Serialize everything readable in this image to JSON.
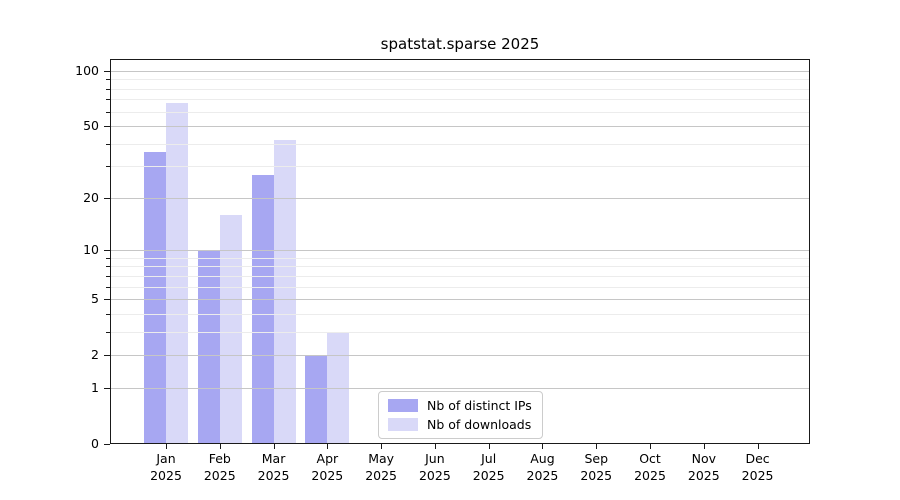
{
  "chart_data": {
    "type": "bar",
    "title": "spatstat.sparse 2025",
    "year": "2025",
    "months": [
      "Jan",
      "Feb",
      "Mar",
      "Apr",
      "May",
      "Jun",
      "Jul",
      "Aug",
      "Sep",
      "Oct",
      "Nov",
      "Dec"
    ],
    "categories": [
      "Jan 2025",
      "Feb 2025",
      "Mar 2025",
      "Apr 2025",
      "May 2025",
      "Jun 2025",
      "Jul 2025",
      "Aug 2025",
      "Sep 2025",
      "Oct 2025",
      "Nov 2025",
      "Dec 2025"
    ],
    "series": [
      {
        "name": "Nb of distinct IPs",
        "color": "#a7a7f2",
        "values": [
          36,
          10,
          27,
          2,
          0,
          0,
          0,
          0,
          0,
          0,
          0,
          0
        ]
      },
      {
        "name": "Nb of downloads",
        "color": "#d9d9f8",
        "values": [
          67,
          16,
          42,
          3,
          0,
          0,
          0,
          0,
          0,
          0,
          0,
          0
        ]
      }
    ],
    "xlabel": "",
    "ylabel": "",
    "yscale": "log1p",
    "ylim": [
      0,
      116
    ],
    "y_major_ticks": [
      0,
      1,
      2,
      5,
      10,
      20,
      50,
      100
    ],
    "y_minor_ticks": [
      3,
      4,
      6,
      7,
      8,
      9,
      30,
      40,
      60,
      70,
      80,
      90
    ],
    "grid": "horizontal, major and minor, drawn over bars",
    "legend_position": "lower center, inside axes",
    "colors": {
      "major_grid": "#c6c6c6",
      "minor_grid": "#ececec",
      "frame": "#1a1a1a",
      "background": "#ffffff"
    }
  }
}
